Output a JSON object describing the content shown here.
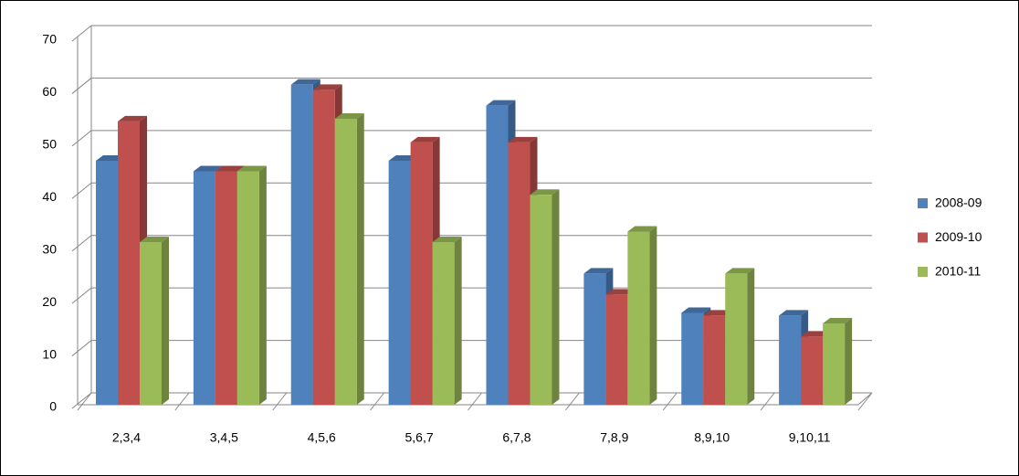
{
  "chart_data": {
    "type": "bar3d",
    "categories": [
      "2,3,4",
      "3,4,5",
      "4,5,6",
      "5,6,7",
      "6,7,8",
      "7,8,9",
      "8,9,10",
      "9,10,11"
    ],
    "series": [
      {
        "name": "2008-09",
        "color": "#4f81bd",
        "values": [
          46.5,
          44.5,
          61,
          46.5,
          57,
          25,
          17.5,
          17
        ]
      },
      {
        "name": "2009-10",
        "color": "#c0504d",
        "values": [
          54,
          44.5,
          60,
          50,
          50,
          21,
          17,
          13
        ]
      },
      {
        "name": "2010-11",
        "color": "#9bbb59",
        "values": [
          31,
          44.5,
          54.5,
          31,
          40,
          33,
          25,
          15.5
        ]
      }
    ],
    "ylim": [
      0,
      70
    ],
    "yticks": [
      0,
      10,
      20,
      30,
      40,
      50,
      60,
      70
    ],
    "grid": true,
    "legend": "right"
  }
}
